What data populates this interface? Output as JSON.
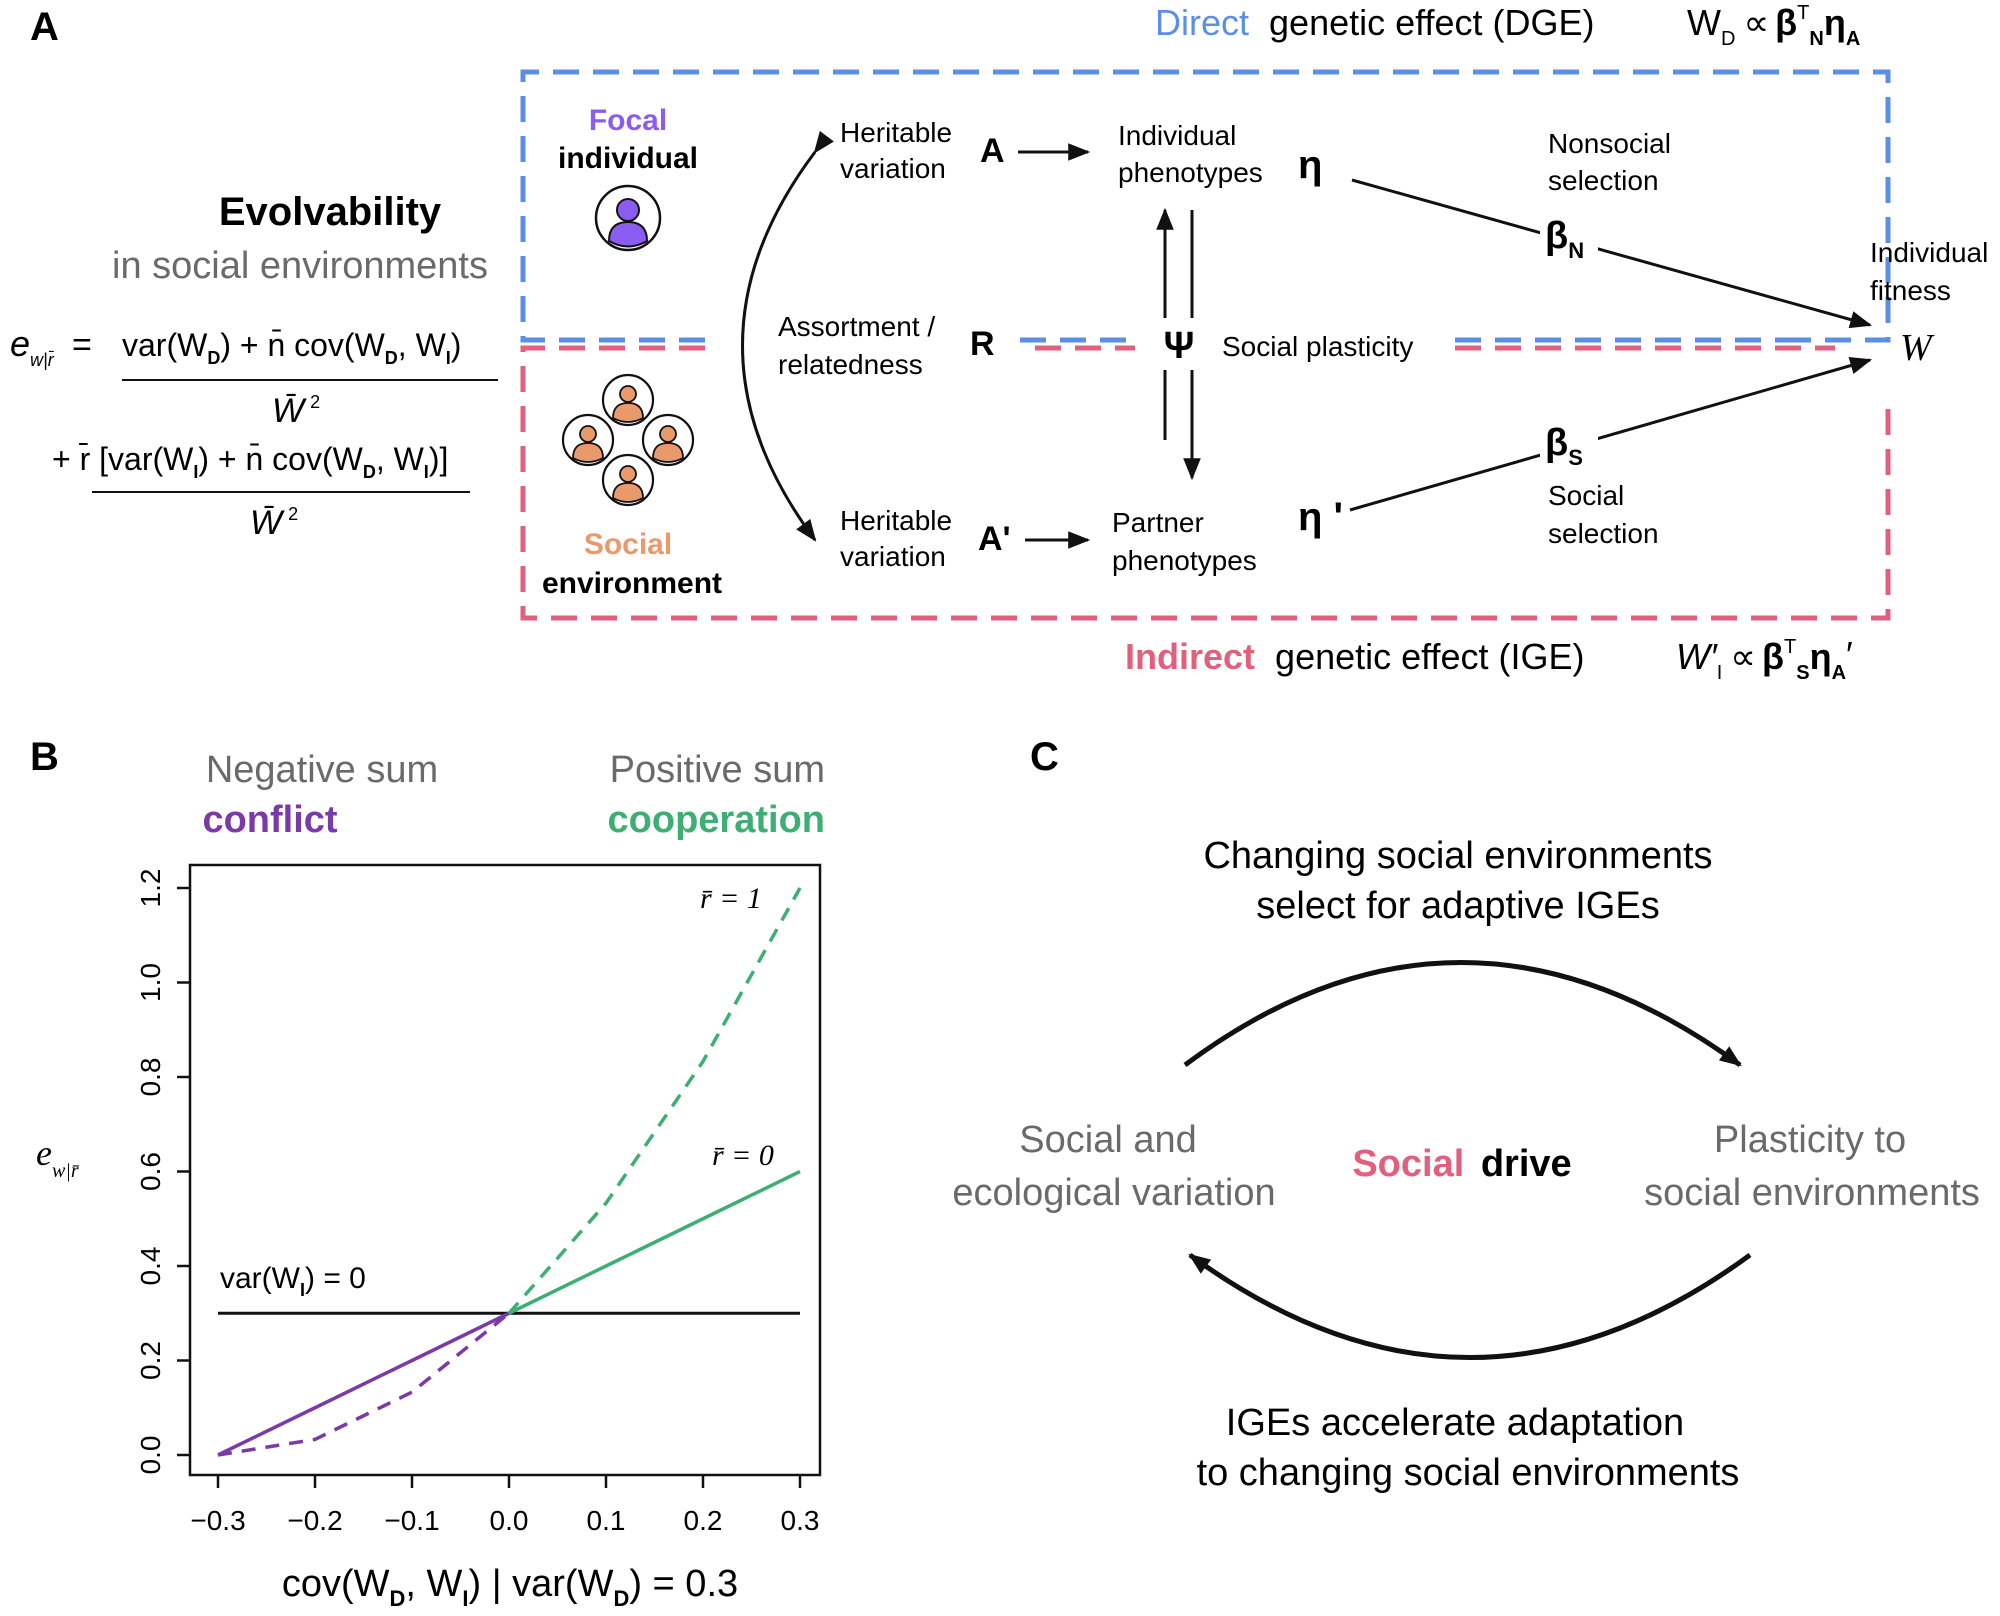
{
  "colors": {
    "blue": "#5b8ee6",
    "pink": "#e0607e",
    "purple": "#7a3aa8",
    "green": "#3fae74",
    "focal_icon": "#8b5cf0",
    "social_icon": "#e89a6c",
    "gray_text": "#6a6a6a",
    "black": "#111111"
  },
  "panel_labels": {
    "a": "A",
    "b": "B",
    "c": "C"
  },
  "panel_a": {
    "title_bold": "Evolvability",
    "title_sub": "in social environments",
    "focal_top": "Focal",
    "focal_bottom": "individual",
    "social_top": "Social",
    "social_bottom": "environment",
    "dge_word": "Direct",
    "dge_rest": "genetic effect (DGE)",
    "dge_formula_lhs": "W",
    "dge_formula_lhs_sub": "D",
    "dge_formula_prop": "∝",
    "dge_formula_beta": "β",
    "dge_formula_beta_sup": "T",
    "dge_formula_beta_sub": "N",
    "dge_formula_eta": "η",
    "dge_formula_eta_sub": "A",
    "ige_word": "Indirect",
    "ige_rest": "genetic effect (IGE)",
    "ige_formula_lhs": "W′",
    "ige_formula_lhs_sub": "I",
    "ige_formula_prop": "∝",
    "ige_formula_beta": "β",
    "ige_formula_beta_sup": "T",
    "ige_formula_beta_sub": "S",
    "ige_formula_eta": "η",
    "ige_formula_eta_sub": "A",
    "ige_formula_eta_prime": "′",
    "heritable_1": "Heritable",
    "variation_1": "variation",
    "sym_A": "A",
    "heritable_2": "Heritable",
    "variation_2": "variation",
    "sym_A_prime": "A'",
    "assortment_1": "Assortment /",
    "assortment_2": "relatedness",
    "sym_R": "R",
    "individual_pheno_1": "Individual",
    "individual_pheno_2": "phenotypes",
    "sym_eta": "η",
    "partner_pheno_1": "Partner",
    "partner_pheno_2": "phenotypes",
    "sym_eta_prime": "η '",
    "sym_psi": "Ψ",
    "social_plasticity": "Social plasticity",
    "nonsocial_1": "Nonsocial",
    "nonsocial_2": "selection",
    "beta_N": "β",
    "beta_N_sub": "N",
    "beta_S": "β",
    "beta_S_sub": "S",
    "social_sel_1": "Social",
    "social_sel_2": "selection",
    "fitness_1": "Individual",
    "fitness_2": "fitness",
    "sym_W": "W",
    "eq_lhs": "e",
    "eq_lhs_sub": "w|r̄",
    "eq_equals": "=",
    "eq_num1_a": "var(W",
    "eq_num1_b": "D",
    "eq_num1_c": ") + n̄ cov(W",
    "eq_num1_d": "D",
    "eq_num1_e": ", W",
    "eq_num1_f": "I",
    "eq_num1_g": ")",
    "eq_den1": "W̄",
    "eq_den1_sup": "2",
    "eq_num2_a": "+ r̄ [var(W",
    "eq_num2_b": "I",
    "eq_num2_c": ") + n̄ cov(W",
    "eq_num2_d": "D",
    "eq_num2_e": ", W",
    "eq_num2_f": "I",
    "eq_num2_g": ")]",
    "eq_den2": "W̄",
    "eq_den2_sup": "2"
  },
  "panel_b": {
    "neg_top": "Negative sum",
    "neg_bottom": "conflict",
    "pos_top": "Positive sum",
    "pos_bottom": "cooperation",
    "ylabel": "e",
    "ylabel_sub": "w|r̄",
    "xlabel_a": "cov(W",
    "xlabel_b": "D",
    "xlabel_c": ", W",
    "xlabel_d": "I",
    "xlabel_e": ") | var(W",
    "xlabel_f": "D",
    "xlabel_g": ") = 0.3",
    "x_ticks": [
      "−0.3",
      "−0.2",
      "−0.1",
      "0.0",
      "0.1",
      "0.2",
      "0.3"
    ],
    "y_ticks": [
      "0.0",
      "0.2",
      "0.4",
      "0.6",
      "0.8",
      "1.0",
      "1.2"
    ],
    "label_r1": "r̄ = 1",
    "label_r0": "r̄ = 0",
    "label_var_a": "var(W",
    "label_var_b": "I",
    "label_var_c": ") = 0"
  },
  "chart_data": {
    "type": "line",
    "xlim": [
      -0.3,
      0.3
    ],
    "ylim": [
      0,
      1.2
    ],
    "x_ticks": [
      -0.3,
      -0.2,
      -0.1,
      0.0,
      0.1,
      0.2,
      0.3
    ],
    "y_ticks": [
      0.0,
      0.2,
      0.4,
      0.6,
      0.8,
      1.0,
      1.2
    ],
    "grid": false,
    "xlabel": "cov(WD, WI) | var(WD) = 0.3",
    "ylabel": "e w|r̄",
    "series": [
      {
        "name": "var(WI) = 0",
        "style": "solid",
        "color": "#111111",
        "x": [
          -0.3,
          0.3
        ],
        "y": [
          0.3,
          0.3
        ]
      },
      {
        "name": "r̄ = 0",
        "style": "solid",
        "color_negative": "#7a3aa8",
        "color_positive": "#3fae74",
        "x": [
          -0.3,
          -0.2,
          -0.1,
          0.0,
          0.1,
          0.2,
          0.3
        ],
        "y": [
          0.0,
          0.1,
          0.2,
          0.3,
          0.4,
          0.5,
          0.6
        ]
      },
      {
        "name": "r̄ = 1",
        "style": "dashed",
        "color_negative": "#7a3aa8",
        "color_positive": "#3fae74",
        "x": [
          -0.3,
          -0.2,
          -0.1,
          0.0,
          0.1,
          0.2,
          0.3
        ],
        "y": [
          0.0,
          0.033,
          0.133,
          0.3,
          0.533,
          0.833,
          1.2
        ]
      }
    ]
  },
  "panel_c": {
    "top_1": "Changing social environments",
    "top_2": "select for adaptive IGEs",
    "left_1": "Social and",
    "left_2": "ecological variation",
    "right_1": "Plasticity to",
    "right_2": "social environments",
    "center_a": "Social",
    "center_b": "drive",
    "bottom_1": "IGEs accelerate adaptation",
    "bottom_2": "to changing social environments"
  }
}
